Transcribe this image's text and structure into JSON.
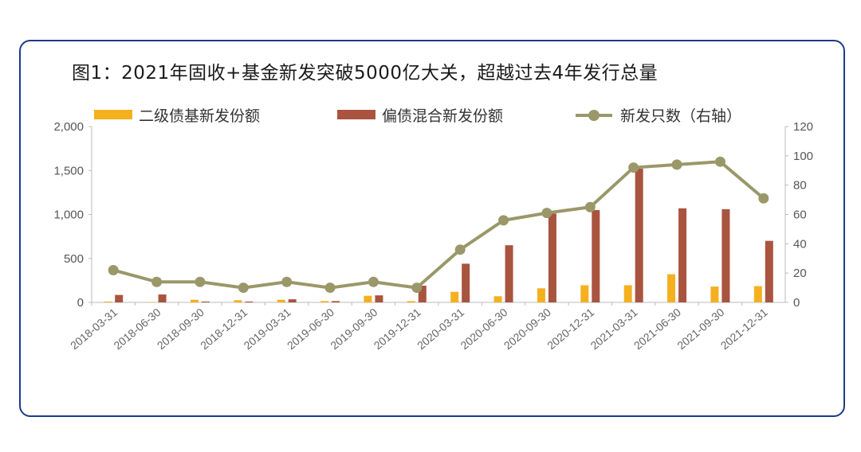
{
  "title": "图1：2021年固收+基金新发突破5000亿大关，超越过去4年发行总量",
  "colors": {
    "bar1": "#f5b020",
    "bar2": "#a9543f",
    "line": "#9a9869",
    "frame": "#1c3a8a"
  },
  "chart_data": {
    "type": "bar",
    "categories": [
      "2018-03-31",
      "2018-06-30",
      "2018-09-30",
      "2018-12-31",
      "2019-03-31",
      "2019-06-30",
      "2019-09-30",
      "2019-12-31",
      "2020-03-31",
      "2020-06-30",
      "2020-09-30",
      "2020-12-31",
      "2021-03-31",
      "2021-06-30",
      "2021-09-30",
      "2021-12-31"
    ],
    "y_left": {
      "ticks": [
        "0",
        "500",
        "1,000",
        "1,500",
        "2,000"
      ],
      "ylim": [
        0,
        2000
      ]
    },
    "y_right": {
      "ticks": [
        "0",
        "20",
        "40",
        "60",
        "80",
        "100",
        "120"
      ],
      "ylim": [
        0,
        120
      ]
    },
    "series": [
      {
        "name": "二级债基新发份额",
        "type": "bar",
        "axis": "left",
        "values": [
          10,
          5,
          30,
          25,
          30,
          15,
          75,
          15,
          120,
          70,
          160,
          195,
          195,
          320,
          180,
          185
        ]
      },
      {
        "name": "偏债混合新发份额",
        "type": "bar",
        "axis": "left",
        "values": [
          85,
          90,
          10,
          10,
          35,
          15,
          80,
          190,
          440,
          650,
          1010,
          1050,
          1520,
          1070,
          1060,
          700
        ]
      },
      {
        "name": "新发只数（右轴）",
        "type": "line",
        "axis": "right",
        "values": [
          22,
          14,
          14,
          10,
          14,
          10,
          14,
          10,
          36,
          56,
          61,
          65,
          92,
          94,
          96,
          71
        ]
      }
    ],
    "legend_position": "top"
  }
}
